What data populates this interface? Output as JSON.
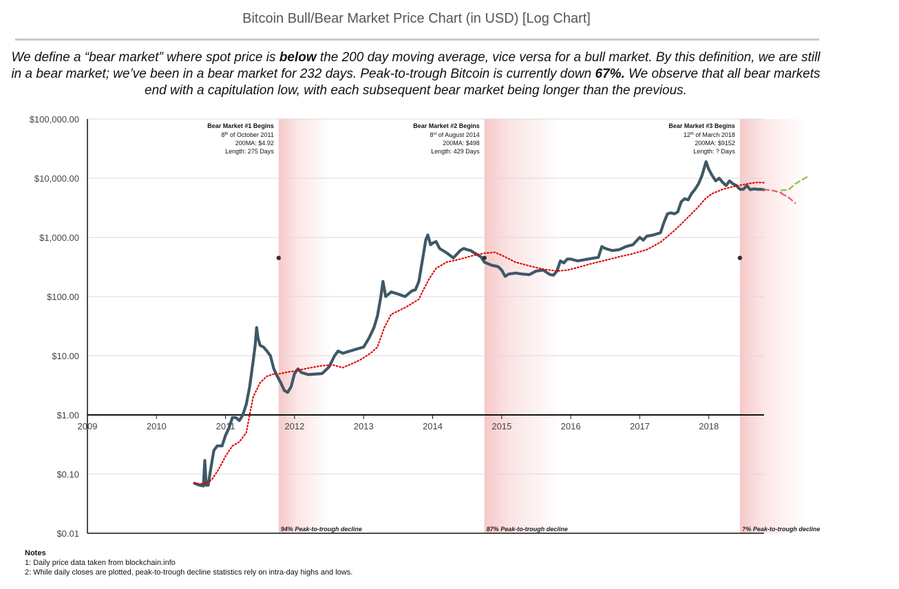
{
  "header": {
    "title": "Bitcoin Bull/Bear Market Price Chart (in USD) [Log Chart]"
  },
  "intro": {
    "part1": "We define a “bear market” where spot price is ",
    "bold1": "below",
    "part2": " the 200 day moving average, vice versa for a bull market. By this definition, we are still in a bear market; we’ve been in a bear market for 232 days. Peak-to-trough Bitcoin is currently down ",
    "bold2": "67%.",
    "part3": " We observe that all bear markets end with a capitulation low, with each subsequent bear market being longer than the previous."
  },
  "notes": {
    "heading": "Notes",
    "items": [
      "1: Daily price data taken from blockchain.info",
      "2: While daily closes are plotted, peak-to-trough decline statistics rely on intra-day highs and lows."
    ]
  },
  "colors": {
    "price": "#3f5866",
    "ma200": "#e00000",
    "bear_shade": "#f4b6b6",
    "projection_up": "#8cc63f",
    "projection_down": "#e06666",
    "grid": "#d9d9d9",
    "axis": "#111111"
  },
  "chart_data": {
    "type": "line",
    "y_scale": "log",
    "ylim": [
      0.01,
      100000
    ],
    "xlim": [
      2009,
      2018.8
    ],
    "y_ticks": [
      {
        "value": 100000,
        "label": "$100,000.00"
      },
      {
        "value": 10000,
        "label": "$10,000.00"
      },
      {
        "value": 1000,
        "label": "$1,000.00"
      },
      {
        "value": 100,
        "label": "$100.00"
      },
      {
        "value": 10,
        "label": "$10.00"
      },
      {
        "value": 1,
        "label": "$1.00"
      },
      {
        "value": 0.1,
        "label": "$0.10"
      },
      {
        "value": 0.01,
        "label": "$0.01"
      }
    ],
    "x_ticks": [
      {
        "value": 2009,
        "label": "2009"
      },
      {
        "value": 2010,
        "label": "2010"
      },
      {
        "value": 2011,
        "label": "2011"
      },
      {
        "value": 2012,
        "label": "2012"
      },
      {
        "value": 2013,
        "label": "2013"
      },
      {
        "value": 2014,
        "label": "2014"
      },
      {
        "value": 2015,
        "label": "2015"
      },
      {
        "value": 2016,
        "label": "2016"
      },
      {
        "value": 2017,
        "label": "2017"
      },
      {
        "value": 2018,
        "label": "2018"
      }
    ],
    "grid": true,
    "series": [
      {
        "key": "price",
        "style": "solid",
        "points": [
          [
            2010.55,
            0.07
          ],
          [
            2010.62,
            0.065
          ],
          [
            2010.68,
            0.063
          ],
          [
            2010.7,
            0.17
          ],
          [
            2010.72,
            0.065
          ],
          [
            2010.75,
            0.065
          ],
          [
            2010.78,
            0.11
          ],
          [
            2010.83,
            0.25
          ],
          [
            2010.88,
            0.3
          ],
          [
            2010.95,
            0.3
          ],
          [
            2011.0,
            0.45
          ],
          [
            2011.05,
            0.6
          ],
          [
            2011.1,
            0.9
          ],
          [
            2011.15,
            0.9
          ],
          [
            2011.2,
            0.8
          ],
          [
            2011.25,
            1.0
          ],
          [
            2011.3,
            1.5
          ],
          [
            2011.35,
            3.0
          ],
          [
            2011.4,
            8.0
          ],
          [
            2011.43,
            15
          ],
          [
            2011.45,
            30
          ],
          [
            2011.47,
            20
          ],
          [
            2011.5,
            15
          ],
          [
            2011.55,
            14
          ],
          [
            2011.6,
            12
          ],
          [
            2011.65,
            10
          ],
          [
            2011.7,
            6
          ],
          [
            2011.75,
            4.5
          ],
          [
            2011.8,
            3.5
          ],
          [
            2011.85,
            2.6
          ],
          [
            2011.9,
            2.4
          ],
          [
            2011.95,
            3.0
          ],
          [
            2012.0,
            5.0
          ],
          [
            2012.05,
            6.0
          ],
          [
            2012.1,
            5.2
          ],
          [
            2012.2,
            4.8
          ],
          [
            2012.3,
            4.9
          ],
          [
            2012.4,
            5.0
          ],
          [
            2012.5,
            6.5
          ],
          [
            2012.58,
            10
          ],
          [
            2012.63,
            12
          ],
          [
            2012.7,
            11
          ],
          [
            2012.8,
            12
          ],
          [
            2012.9,
            13
          ],
          [
            2013.0,
            14
          ],
          [
            2013.08,
            20
          ],
          [
            2013.15,
            30
          ],
          [
            2013.2,
            47
          ],
          [
            2013.25,
            100
          ],
          [
            2013.28,
            180
          ],
          [
            2013.32,
            100
          ],
          [
            2013.4,
            120
          ],
          [
            2013.5,
            110
          ],
          [
            2013.6,
            100
          ],
          [
            2013.7,
            125
          ],
          [
            2013.75,
            130
          ],
          [
            2013.8,
            180
          ],
          [
            2013.85,
            400
          ],
          [
            2013.9,
            900
          ],
          [
            2013.93,
            1100
          ],
          [
            2013.97,
            750
          ],
          [
            2014.0,
            800
          ],
          [
            2014.05,
            850
          ],
          [
            2014.1,
            650
          ],
          [
            2014.2,
            550
          ],
          [
            2014.3,
            450
          ],
          [
            2014.4,
            600
          ],
          [
            2014.45,
            650
          ],
          [
            2014.5,
            620
          ],
          [
            2014.55,
            600
          ],
          [
            2014.6,
            550
          ],
          [
            2014.7,
            470
          ],
          [
            2014.75,
            380
          ],
          [
            2014.85,
            340
          ],
          [
            2014.95,
            320
          ],
          [
            2015.0,
            280
          ],
          [
            2015.05,
            220
          ],
          [
            2015.1,
            240
          ],
          [
            2015.2,
            250
          ],
          [
            2015.3,
            240
          ],
          [
            2015.4,
            235
          ],
          [
            2015.5,
            270
          ],
          [
            2015.6,
            280
          ],
          [
            2015.7,
            235
          ],
          [
            2015.75,
            230
          ],
          [
            2015.8,
            270
          ],
          [
            2015.85,
            400
          ],
          [
            2015.9,
            370
          ],
          [
            2015.95,
            430
          ],
          [
            2016.0,
            430
          ],
          [
            2016.1,
            400
          ],
          [
            2016.2,
            420
          ],
          [
            2016.3,
            440
          ],
          [
            2016.4,
            460
          ],
          [
            2016.45,
            700
          ],
          [
            2016.5,
            650
          ],
          [
            2016.6,
            600
          ],
          [
            2016.7,
            620
          ],
          [
            2016.8,
            700
          ],
          [
            2016.9,
            750
          ],
          [
            2017.0,
            1000
          ],
          [
            2017.05,
            900
          ],
          [
            2017.1,
            1050
          ],
          [
            2017.2,
            1100
          ],
          [
            2017.3,
            1200
          ],
          [
            2017.35,
            1800
          ],
          [
            2017.4,
            2500
          ],
          [
            2017.45,
            2600
          ],
          [
            2017.5,
            2500
          ],
          [
            2017.55,
            2700
          ],
          [
            2017.6,
            4000
          ],
          [
            2017.65,
            4500
          ],
          [
            2017.7,
            4300
          ],
          [
            2017.75,
            5500
          ],
          [
            2017.8,
            6500
          ],
          [
            2017.85,
            8000
          ],
          [
            2017.9,
            11000
          ],
          [
            2017.96,
            19000
          ],
          [
            2018.0,
            14000
          ],
          [
            2018.05,
            11000
          ],
          [
            2018.1,
            9000
          ],
          [
            2018.15,
            10000
          ],
          [
            2018.2,
            8500
          ],
          [
            2018.25,
            7500
          ],
          [
            2018.3,
            9000
          ],
          [
            2018.35,
            8000
          ],
          [
            2018.4,
            7500
          ],
          [
            2018.45,
            6500
          ],
          [
            2018.5,
            6500
          ],
          [
            2018.55,
            7500
          ],
          [
            2018.6,
            6400
          ],
          [
            2018.65,
            6600
          ],
          [
            2018.7,
            6500
          ],
          [
            2018.75,
            6500
          ],
          [
            2018.8,
            6400
          ]
        ]
      },
      {
        "key": "ma200",
        "style": "dotted",
        "points": [
          [
            2010.55,
            0.07
          ],
          [
            2010.7,
            0.068
          ],
          [
            2010.8,
            0.08
          ],
          [
            2010.9,
            0.12
          ],
          [
            2011.0,
            0.2
          ],
          [
            2011.1,
            0.3
          ],
          [
            2011.2,
            0.35
          ],
          [
            2011.3,
            0.5
          ],
          [
            2011.4,
            2.0
          ],
          [
            2011.5,
            3.5
          ],
          [
            2011.6,
            4.5
          ],
          [
            2011.7,
            4.9
          ],
          [
            2011.8,
            5.0
          ],
          [
            2011.9,
            5.3
          ],
          [
            2012.0,
            5.5
          ],
          [
            2012.2,
            6.2
          ],
          [
            2012.4,
            6.8
          ],
          [
            2012.55,
            7.0
          ],
          [
            2012.7,
            6.3
          ],
          [
            2012.85,
            7.5
          ],
          [
            2012.95,
            8.5
          ],
          [
            2013.1,
            11
          ],
          [
            2013.2,
            14
          ],
          [
            2013.3,
            30
          ],
          [
            2013.4,
            50
          ],
          [
            2013.6,
            65
          ],
          [
            2013.8,
            90
          ],
          [
            2013.85,
            120
          ],
          [
            2013.95,
            200
          ],
          [
            2014.05,
            300
          ],
          [
            2014.2,
            380
          ],
          [
            2014.4,
            430
          ],
          [
            2014.6,
            500
          ],
          [
            2014.75,
            540
          ],
          [
            2014.9,
            560
          ],
          [
            2015.0,
            500
          ],
          [
            2015.2,
            380
          ],
          [
            2015.4,
            330
          ],
          [
            2015.6,
            290
          ],
          [
            2015.8,
            270
          ],
          [
            2015.95,
            280
          ],
          [
            2016.1,
            310
          ],
          [
            2016.3,
            360
          ],
          [
            2016.5,
            410
          ],
          [
            2016.7,
            470
          ],
          [
            2016.9,
            530
          ],
          [
            2017.1,
            620
          ],
          [
            2017.3,
            830
          ],
          [
            2017.5,
            1300
          ],
          [
            2017.7,
            2200
          ],
          [
            2017.85,
            3300
          ],
          [
            2017.95,
            4500
          ],
          [
            2018.05,
            5500
          ],
          [
            2018.2,
            6500
          ],
          [
            2018.35,
            7200
          ],
          [
            2018.5,
            7800
          ],
          [
            2018.6,
            8200
          ],
          [
            2018.7,
            8500
          ],
          [
            2018.8,
            8400
          ]
        ]
      },
      {
        "key": "proj_down_a",
        "style": "dashed",
        "points": [
          [
            2018.8,
            6400
          ],
          [
            2018.9,
            6300
          ],
          [
            2019.05,
            5700
          ]
        ]
      },
      {
        "key": "proj_up",
        "style": "dashed",
        "points": [
          [
            2019.05,
            6300
          ],
          [
            2019.15,
            6300
          ],
          [
            2019.25,
            8000
          ],
          [
            2019.42,
            10500
          ]
        ]
      },
      {
        "key": "proj_down_b",
        "style": "dashed",
        "points": [
          [
            2019.05,
            5500
          ],
          [
            2019.15,
            4800
          ],
          [
            2019.25,
            3800
          ]
        ]
      }
    ],
    "bear_markets": [
      {
        "start": 2011.77,
        "end": 2012.52,
        "title": "Bear Market #1 Begins",
        "day": "8",
        "suffix": "th",
        "date_rest": " of October 2011",
        "ma": "200MA: $4.92",
        "length": "Length: 275 Days",
        "marker_price": 450,
        "decline": "94% Peak-to-trough  decline"
      },
      {
        "start": 2014.75,
        "end": 2015.87,
        "title": "Bear Market #2 Begins",
        "day": "8",
        "suffix": "st",
        "date_rest": " of August 2014",
        "ma": "200MA: $498",
        "length": "Length: 429 Days",
        "marker_price": 450,
        "decline": "87% Peak-to-trough  decline"
      },
      {
        "start": 2018.45,
        "end": 2019.4,
        "title": "Bear Market #3 Begins",
        "day": "12",
        "suffix": "th",
        "date_rest": " of March 2018",
        "ma": "200MA: $9152",
        "length": "Length: ? Days",
        "marker_price": 450,
        "decline": "?% Peak-to-trough  decline"
      }
    ]
  }
}
